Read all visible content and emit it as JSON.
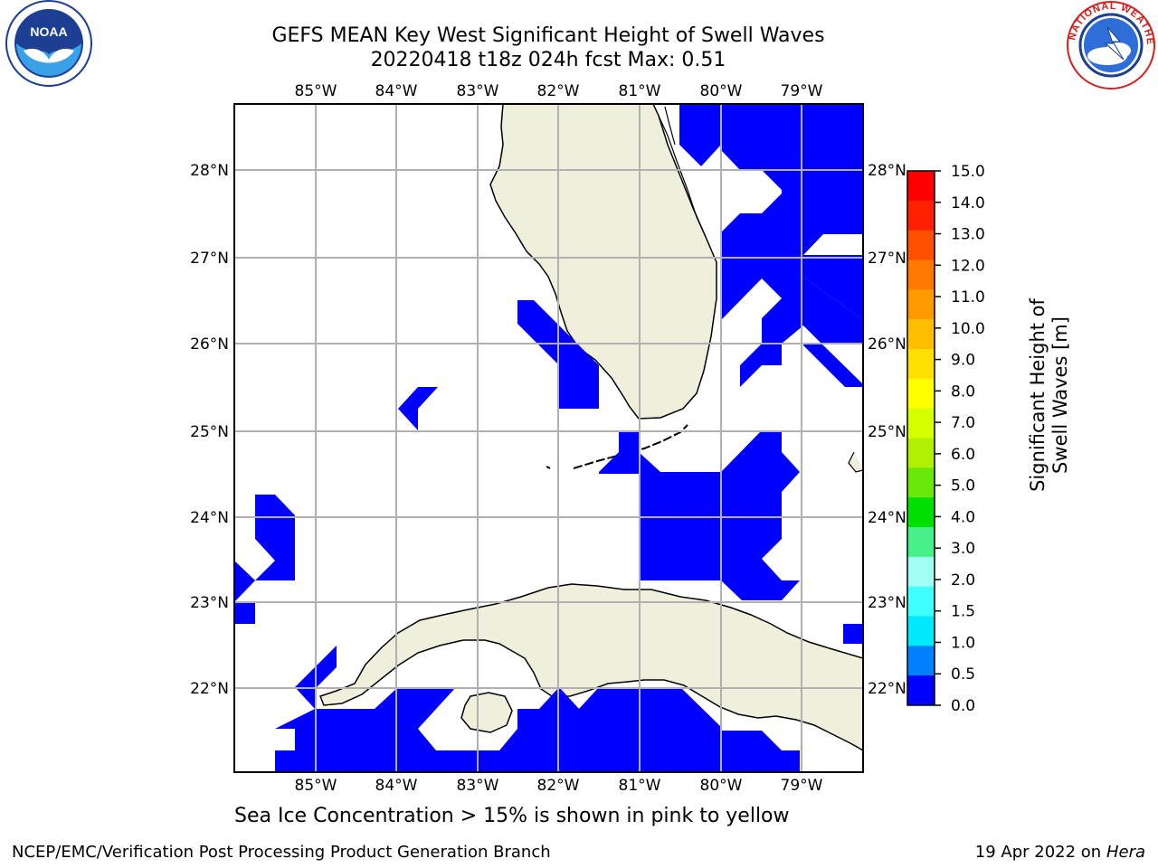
{
  "header": {
    "title_line1": "GEFS MEAN Key West Significant Height of Swell Waves",
    "title_line2": "20220418 t18z 024h fcst   Max: 0.51"
  },
  "logos": {
    "left": "noaa-logo-icon",
    "right": "national-weather-service-logo-icon"
  },
  "map": {
    "lon_labels": [
      "85°W",
      "84°W",
      "83°W",
      "82°W",
      "81°W",
      "80°W",
      "79°W"
    ],
    "lat_labels": [
      "28°N",
      "27°N",
      "26°N",
      "25°N",
      "24°N",
      "23°N",
      "22°N"
    ],
    "land_color": "#efefdc",
    "swell_color": "#0000ff",
    "grid_color": "#b0b0b0"
  },
  "colorbar": {
    "ticks": [
      "15.0",
      "14.0",
      "13.0",
      "12.0",
      "11.0",
      "10.0",
      "9.0",
      "8.0",
      "7.0",
      "6.0",
      "5.0",
      "4.0",
      "3.0",
      "2.0",
      "1.5",
      "1.0",
      "0.5",
      "0.0"
    ],
    "colors": [
      "#ff0000",
      "#ff2000",
      "#ff5000",
      "#ff7800",
      "#ff9a00",
      "#ffbe00",
      "#ffe000",
      "#ffff00",
      "#d6ff00",
      "#b0f000",
      "#6ae80a",
      "#00e000",
      "#48f08a",
      "#a0fff0",
      "#40ffff",
      "#00e8ff",
      "#0080ff",
      "#0000ff"
    ],
    "label": "Significant Height of Swell Waves [m]"
  },
  "footer": {
    "note": "Sea Ice Concentration > 15% is shown in pink to yellow",
    "branch": "NCEP/EMC/Verification Post Processing Product Generation Branch",
    "date": "19 Apr 2022 on",
    "machine": "Hera"
  }
}
